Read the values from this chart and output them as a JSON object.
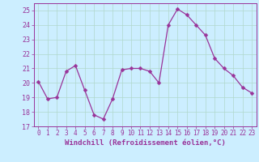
{
  "x": [
    0,
    1,
    2,
    3,
    4,
    5,
    6,
    7,
    8,
    9,
    10,
    11,
    12,
    13,
    14,
    15,
    16,
    17,
    18,
    19,
    20,
    21,
    22,
    23
  ],
  "y": [
    20.1,
    18.9,
    19.0,
    20.8,
    21.2,
    19.5,
    17.8,
    17.5,
    18.9,
    20.9,
    21.0,
    21.0,
    20.8,
    20.0,
    24.0,
    25.1,
    24.7,
    24.0,
    23.3,
    21.7,
    21.0,
    20.5,
    19.7,
    19.3
  ],
  "line_color": "#993399",
  "marker": "D",
  "marker_size": 2.5,
  "bg_color": "#cceeff",
  "grid_color": "#aaddcc",
  "xlabel": "Windchill (Refroidissement éolien,°C)",
  "xlabel_color": "#993399",
  "tick_color": "#993399",
  "label_color": "#993399",
  "ylim": [
    17,
    25.5
  ],
  "xlim": [
    -0.5,
    23.5
  ],
  "yticks": [
    17,
    18,
    19,
    20,
    21,
    22,
    23,
    24,
    25
  ],
  "xticks": [
    0,
    1,
    2,
    3,
    4,
    5,
    6,
    7,
    8,
    9,
    10,
    11,
    12,
    13,
    14,
    15,
    16,
    17,
    18,
    19,
    20,
    21,
    22,
    23
  ],
  "tick_fontsize": 5.5,
  "xlabel_fontsize": 6.5
}
